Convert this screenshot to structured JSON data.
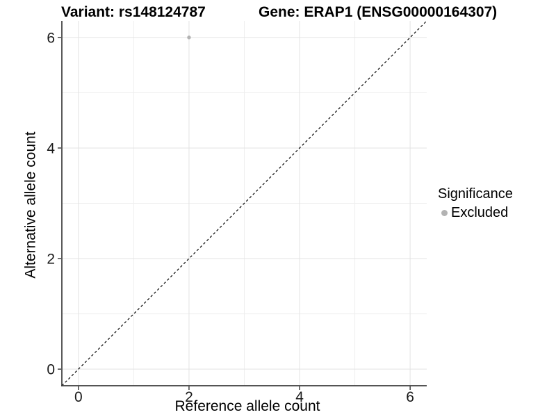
{
  "chart_data": {
    "type": "scatter",
    "titles": {
      "left": "Variant: rs148124787",
      "right": "Gene: ERAP1 (ENSG00000164307)"
    },
    "xlabel": "Reference allele count",
    "ylabel": "Alternative allele count",
    "xlim": [
      -0.3,
      6.3
    ],
    "ylim": [
      -0.3,
      6.3
    ],
    "xticks": [
      0,
      2,
      4,
      6
    ],
    "yticks": [
      0,
      2,
      4,
      6
    ],
    "xminor": [
      1,
      3,
      5
    ],
    "yminor": [
      1,
      3,
      5
    ],
    "grid": true,
    "points": [
      {
        "x": 2,
        "y": 6,
        "significance": "Excluded"
      }
    ],
    "point_color": "#b3b3b3",
    "point_radius": 2.7,
    "reference_line": {
      "style": "dashed",
      "color": "#000000",
      "from": [
        -0.3,
        -0.3
      ],
      "to": [
        6.3,
        6.3
      ]
    },
    "legend": {
      "title": "Significance",
      "position": "right",
      "items": [
        {
          "label": "Excluded",
          "color": "#b3b3b3"
        }
      ]
    }
  },
  "colors": {
    "background": "#ffffff",
    "grid_major": "#e3e3e3",
    "grid_minor": "#eeeeee",
    "axis_line": "#3c3c3c",
    "tick_mark": "#333333",
    "tick_text": "#1a1a1a"
  }
}
